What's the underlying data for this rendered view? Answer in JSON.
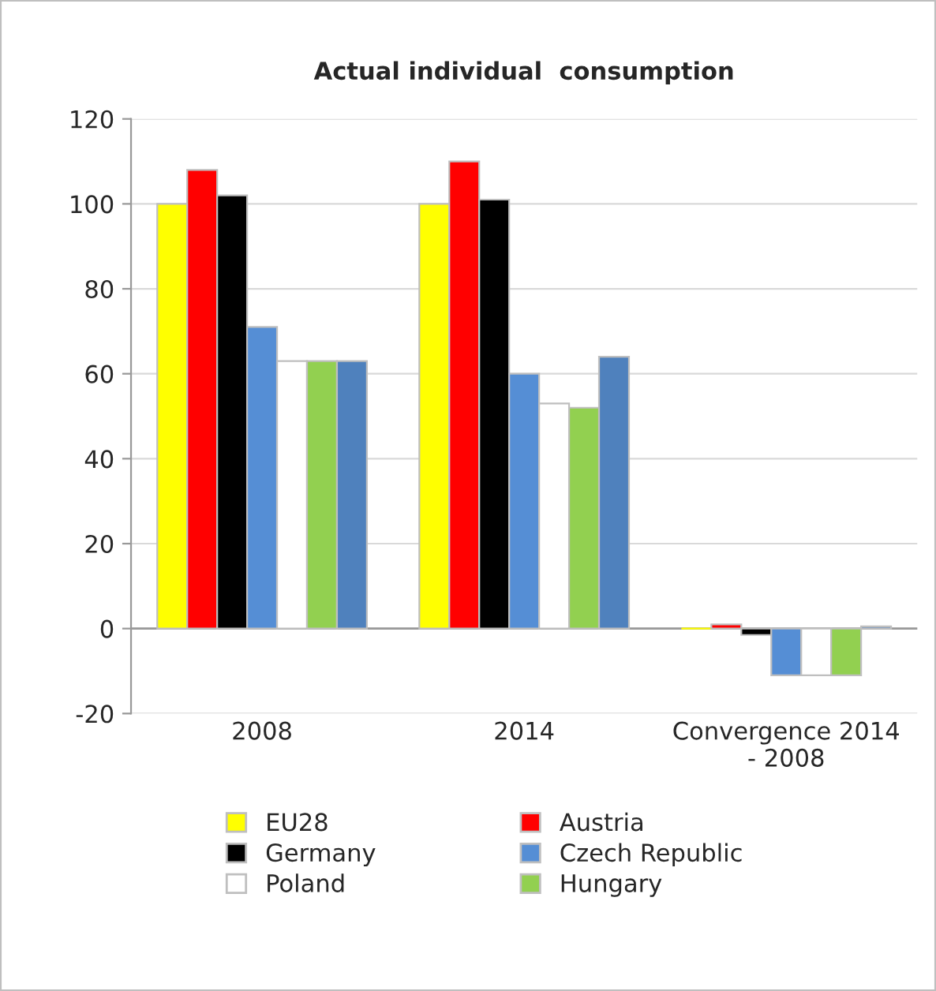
{
  "chart_data": {
    "type": "bar",
    "title": "Actual individual  consumption",
    "categories": [
      "2008",
      "2014",
      "Convergence 2014\n- 2008"
    ],
    "series": [
      {
        "name": "EU28",
        "color": "#ffff00",
        "values": [
          100,
          100,
          0
        ]
      },
      {
        "name": "Austria",
        "color": "#ff0000",
        "values": [
          108,
          110,
          1
        ]
      },
      {
        "name": "Germany",
        "color": "#000000",
        "values": [
          102,
          101,
          -1.5
        ]
      },
      {
        "name": "Czech Republic",
        "color": "#558ed5",
        "values": [
          71,
          60,
          -11
        ]
      },
      {
        "name": "Poland",
        "color": "#ffffff",
        "values": [
          63,
          53,
          -11
        ]
      },
      {
        "name": "Hungary",
        "color": "#92d050",
        "values": [
          63,
          52,
          -11
        ]
      },
      {
        "color": "#4f81bd",
        "values": [
          63,
          64,
          0.5
        ]
      }
    ],
    "ylim": [
      -20,
      120
    ],
    "yticks": [
      -20,
      0,
      20,
      40,
      60,
      80,
      100,
      120
    ],
    "grid": "y",
    "legend": "bottom"
  }
}
